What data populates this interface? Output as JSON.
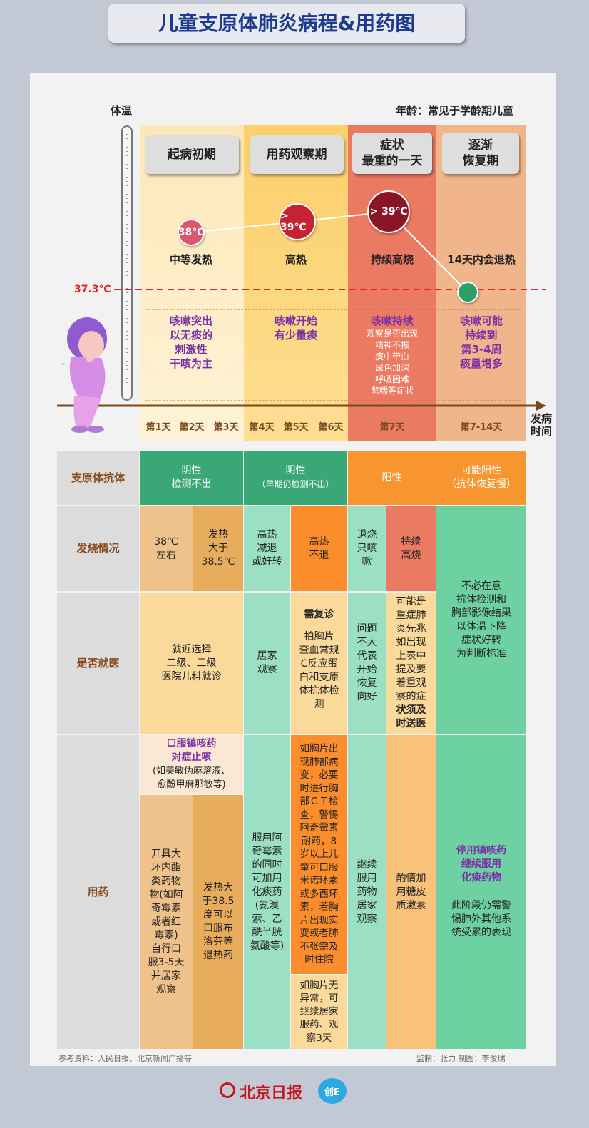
{
  "title": "儿童支原体肺炎病程&用药图",
  "chart": {
    "y_label": "体温",
    "age_note": "年龄：常见于学龄期儿童",
    "threshold_label": "37.3℃",
    "x_label_line1": "发病",
    "x_label_line2": "时间",
    "phases": [
      {
        "line1": "起病初期",
        "line2": ""
      },
      {
        "line1": "用药观察期",
        "line2": ""
      },
      {
        "line1": "症状",
        "line2": "最重的一天"
      },
      {
        "line1": "逐渐",
        "line2": "恢复期"
      }
    ],
    "temps": [
      "38℃",
      "> 39℃",
      "> 39℃",
      ""
    ],
    "fever": [
      "中等发热",
      "高热",
      "持续高烧",
      "14天内会退热"
    ],
    "cough": [
      {
        "main": [
          "咳嗽突出",
          "以无痰的",
          "刺激性",
          "干咳为主"
        ],
        "sub": []
      },
      {
        "main": [
          "咳嗽开始",
          "有少量痰"
        ],
        "sub": []
      },
      {
        "main": [
          "咳嗽持续"
        ],
        "sub": [
          "观察是否出现",
          "精神不振",
          "痰中带血",
          "尿色加深",
          "呼吸困难",
          "憋喘等症状"
        ]
      },
      {
        "main": [
          "咳嗽可能",
          "持续到",
          "第3-4周",
          "痰量增多"
        ],
        "sub": []
      }
    ],
    "days": [
      "第1天",
      "第2天",
      "第3天",
      "第4天",
      "第5天",
      "第6天",
      "第7天",
      "第7-14天"
    ]
  },
  "table": {
    "row_headers": [
      "支原体抗体",
      "发烧情况",
      "是否就医",
      "用药"
    ],
    "antibody": [
      {
        "l1": "阴性",
        "l2": "检测不出"
      },
      {
        "l1": "阴性",
        "l2": "（早期仍检测不出）"
      },
      {
        "l1": "阳性",
        "l2": ""
      },
      {
        "l1": "可能阳性",
        "l2": "（抗体恢复慢）"
      }
    ],
    "fever": {
      "c1": [
        "38℃",
        "左右"
      ],
      "c2": [
        "发热",
        "大于",
        "38.5℃"
      ],
      "c3": [
        "高热",
        "减退",
        "或好转"
      ],
      "c4": [
        "高热",
        "不退"
      ],
      "c5": [
        "退烧",
        "只咳",
        "嗽"
      ],
      "c6": [
        "持续",
        "高烧"
      ],
      "c7": [
        "不必在意",
        "抗体检测和",
        "胸部影像结果",
        "以体温下降",
        "症状好转",
        "为判断标准"
      ]
    },
    "visit": {
      "c1": [
        "就近选择",
        "二级、三级",
        "医院儿科就诊"
      ],
      "c3": [
        "居家",
        "观察"
      ],
      "c4_title": "需复诊",
      "c4": [
        "拍胸片",
        "查血常规",
        "C反应蛋",
        "白和支原",
        "体抗体检",
        "测"
      ],
      "c5": [
        "问题",
        "不大",
        "代表",
        "开始",
        "恢复",
        "向好"
      ],
      "c6": [
        "可能是",
        "重症肺",
        "炎先兆",
        "如出现",
        "上表中",
        "提及要",
        "着重观",
        "察的症",
        "状须及",
        "时送医"
      ]
    },
    "meds": {
      "oral_title": [
        "口服镇咳药",
        "对症止咳"
      ],
      "oral_sub": [
        "(如美敏伪麻溶液、",
        "愈酚甲麻那敏等)"
      ],
      "c1": [
        "开具大",
        "环内酯",
        "类药物",
        "物(如阿",
        "奇霉素",
        "或者红",
        "霉素)",
        "自行口",
        "服3-5天",
        "并居家",
        "观察"
      ],
      "c2": [
        "发热大",
        "于38.5",
        "度可以",
        "口服布",
        "洛芬等",
        "退热药"
      ],
      "c3": [
        "服用阿",
        "奇霉素",
        "的同时",
        "可加用",
        "化痰药",
        "(氨溴",
        "索、乙",
        "酰半胱",
        "氨酸等)"
      ],
      "c4a": [
        "如胸片出",
        "现肺部病",
        "变，必要",
        "时进行胸",
        "部ＣＴ检",
        "查，警惕",
        "阿奇霉素",
        "耐药，8",
        "岁以上儿",
        "童可口服",
        "米诺环素",
        "或多西环",
        "素，若胸",
        "片出现实",
        "变或者肺",
        "不张需及",
        "时住院"
      ],
      "c4b": [
        "如胸片无",
        "异常，可",
        "继续居家",
        "服药、观",
        "察3天"
      ],
      "c5": [
        "继续",
        "服用",
        "药物",
        "居家",
        "观察"
      ],
      "c6": [
        "酌情加",
        "用糖皮",
        "质激素"
      ],
      "c7_title": [
        "停用镇咳药",
        "继续服用",
        "化痰药物"
      ],
      "c7": [
        "此阶段仍需警",
        "惕肺外其他系",
        "统受累的表现"
      ]
    }
  },
  "footer": {
    "left": "参考资料：人民日报、北京新闻广播等",
    "right": "监制：张力  制图：李俊瑞",
    "logo": "北京日报",
    "badge": "创E"
  },
  "colors": {
    "title": "#1d3c8f",
    "purple": "#7a2fa8",
    "red_dash": "#e0242b"
  }
}
